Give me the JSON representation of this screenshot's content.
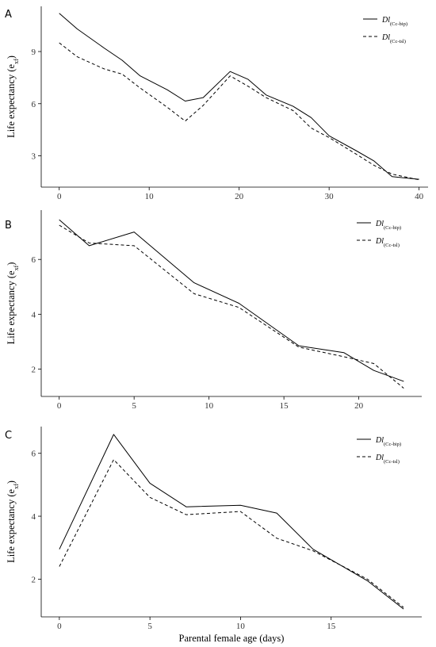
{
  "chart_data": [
    {
      "type": "line",
      "panel": "A",
      "xlabel": "",
      "ylabel": "Life expectancy (e",
      "ylabel_sub": "xf",
      "ylabel_close": ")",
      "xlim": [
        -2,
        41
      ],
      "ylim": [
        1.2,
        11.6
      ],
      "x_ticks": [
        0,
        10,
        20,
        30,
        40
      ],
      "y_ticks": [
        3,
        6,
        9
      ],
      "legend_position": "top-right",
      "series": [
        {
          "name": "Dl",
          "name_sub": "(Cc-bip)",
          "style": "solid",
          "x": [
            0,
            2,
            5,
            7,
            9,
            12,
            14,
            16,
            19,
            21,
            23,
            26,
            28,
            30,
            33,
            35,
            37,
            40
          ],
          "y": [
            11.2,
            10.3,
            9.2,
            8.5,
            7.6,
            6.8,
            6.15,
            6.35,
            7.85,
            7.4,
            6.5,
            5.85,
            5.2,
            4.15,
            3.3,
            2.7,
            1.8,
            1.65
          ]
        },
        {
          "name": "Dl",
          "name_sub": "(Cc-tsl)",
          "style": "dashed",
          "x": [
            0,
            2,
            5,
            7,
            9,
            12,
            14,
            16,
            19,
            21,
            23,
            26,
            28,
            30,
            33,
            35,
            37,
            40
          ],
          "y": [
            9.5,
            8.7,
            8.0,
            7.7,
            6.9,
            5.8,
            5.0,
            5.9,
            7.6,
            7.0,
            6.35,
            5.6,
            4.6,
            4.05,
            3.1,
            2.45,
            1.95,
            1.62
          ]
        }
      ]
    },
    {
      "type": "line",
      "panel": "B",
      "xlabel": "",
      "ylabel": "Life expectancy (e",
      "ylabel_sub": "xf",
      "ylabel_close": ")",
      "xlim": [
        -1.2,
        24.2
      ],
      "ylim": [
        1.0,
        7.8
      ],
      "x_ticks": [
        0,
        5,
        10,
        15,
        20
      ],
      "y_ticks": [
        2,
        4,
        6
      ],
      "legend_position": "top-right",
      "series": [
        {
          "name": "Dl",
          "name_sub": "(Cc-bip)",
          "style": "solid",
          "x": [
            0,
            2,
            5,
            9,
            12,
            16,
            19,
            21,
            23
          ],
          "y": [
            7.45,
            6.5,
            7.0,
            5.15,
            4.4,
            2.85,
            2.6,
            1.95,
            1.55
          ]
        },
        {
          "name": "Dl",
          "name_sub": "(Cc-tsl)",
          "style": "dashed",
          "x": [
            0,
            2,
            5,
            9,
            12,
            16,
            19,
            21,
            23
          ],
          "y": [
            7.25,
            6.6,
            6.5,
            4.75,
            4.25,
            2.8,
            2.45,
            2.2,
            1.3
          ]
        }
      ]
    },
    {
      "type": "line",
      "panel": "C",
      "xlabel": "Parental female age (days)",
      "ylabel": "Life expectancy (e",
      "ylabel_sub": "xf",
      "ylabel_close": ")",
      "xlim": [
        -1.0,
        20.0
      ],
      "ylim": [
        0.8,
        6.85
      ],
      "x_ticks": [
        0,
        5,
        10,
        15
      ],
      "y_ticks": [
        2,
        4,
        6
      ],
      "legend_position": "top-right",
      "series": [
        {
          "name": "Dl",
          "name_sub": "(Cc-bip)",
          "style": "solid",
          "x": [
            0,
            3,
            5,
            7,
            10,
            12,
            14,
            17,
            19
          ],
          "y": [
            2.95,
            6.6,
            5.05,
            4.3,
            4.35,
            4.1,
            2.95,
            1.95,
            1.05
          ]
        },
        {
          "name": "Dl",
          "name_sub": "(Cc-tsl)",
          "style": "dashed",
          "x": [
            0,
            3,
            5,
            7,
            10,
            12,
            14,
            17,
            19
          ],
          "y": [
            2.4,
            5.8,
            4.6,
            4.05,
            4.15,
            3.3,
            2.9,
            2.0,
            1.1
          ]
        }
      ]
    }
  ]
}
